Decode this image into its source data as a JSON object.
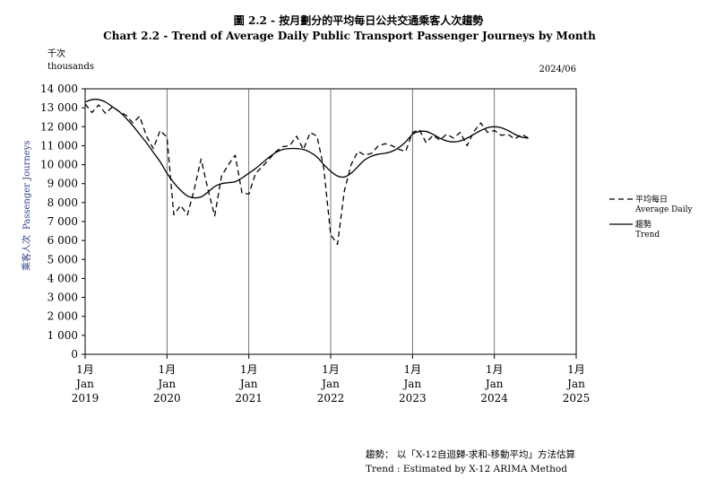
{
  "title_zh": "圖 2.2 -  按月劃分的平均每日公共交通乘客人次趨勢",
  "title_en": "Chart 2.2 -  Trend of Average Daily Public Transport Passenger Journeys by Month",
  "unit_zh": "千次",
  "unit_en": "thousands",
  "period": "2024/06",
  "note_zh": "趨勢：  以「X-12自迴歸-求和-移動平均」方法估算",
  "note_en": "Trend : Estimated by X-12 ARIMA Method",
  "colors": {
    "line": "#000000",
    "axis": "#000000",
    "ylabel": "#2f3f86"
  },
  "chart_data": {
    "type": "line",
    "title": "Trend of Average Daily Public Transport Passenger Journeys by Month",
    "ylabel_zh": "乘客人次",
    "ylabel_en": "Passenger Journeys",
    "ylim": [
      0,
      14000
    ],
    "yticks": [
      0,
      1000,
      2000,
      3000,
      4000,
      5000,
      6000,
      7000,
      8000,
      9000,
      10000,
      11000,
      12000,
      13000,
      14000
    ],
    "ytick_labels": [
      "0",
      "1 000",
      "2 000",
      "3 000",
      "4 000",
      "5 000",
      "6 000",
      "7 000",
      "8 000",
      "9 000",
      "10 000",
      "11 000",
      "12 000",
      "13 000",
      "14 000"
    ],
    "xlim": [
      "2019-01",
      "2025-01"
    ],
    "xticks": [
      {
        "month_zh": "1月",
        "month_en": "Jan",
        "year": "2019"
      },
      {
        "month_zh": "1月",
        "month_en": "Jan",
        "year": "2020"
      },
      {
        "month_zh": "1月",
        "month_en": "Jan",
        "year": "2021"
      },
      {
        "month_zh": "1月",
        "month_en": "Jan",
        "year": "2022"
      },
      {
        "month_zh": "1月",
        "month_en": "Jan",
        "year": "2023"
      },
      {
        "month_zh": "1月",
        "month_en": "Jan",
        "year": "2024"
      },
      {
        "month_zh": "1月",
        "month_en": "Jan",
        "year": "2025"
      }
    ],
    "grid": "vertical lines at each January",
    "legend_position": "right",
    "x": [
      "2019-01",
      "2019-02",
      "2019-03",
      "2019-04",
      "2019-05",
      "2019-06",
      "2019-07",
      "2019-08",
      "2019-09",
      "2019-10",
      "2019-11",
      "2019-12",
      "2020-01",
      "2020-02",
      "2020-03",
      "2020-04",
      "2020-05",
      "2020-06",
      "2020-07",
      "2020-08",
      "2020-09",
      "2020-10",
      "2020-11",
      "2020-12",
      "2021-01",
      "2021-02",
      "2021-03",
      "2021-04",
      "2021-05",
      "2021-06",
      "2021-07",
      "2021-08",
      "2021-09",
      "2021-10",
      "2021-11",
      "2021-12",
      "2022-01",
      "2022-02",
      "2022-03",
      "2022-04",
      "2022-05",
      "2022-06",
      "2022-07",
      "2022-08",
      "2022-09",
      "2022-10",
      "2022-11",
      "2022-12",
      "2023-01",
      "2023-02",
      "2023-03",
      "2023-04",
      "2023-05",
      "2023-06",
      "2023-07",
      "2023-08",
      "2023-09",
      "2023-10",
      "2023-11",
      "2023-12",
      "2024-01",
      "2024-02",
      "2024-03",
      "2024-04",
      "2024-05",
      "2024-06"
    ],
    "series": [
      {
        "name_zh": "平均每日",
        "name_en": "Average Daily",
        "style": "dashed",
        "values": [
          13200,
          12750,
          13150,
          12700,
          13050,
          12800,
          12600,
          12200,
          12550,
          11500,
          10850,
          11800,
          11450,
          7350,
          7850,
          7350,
          8700,
          10300,
          8700,
          7300,
          9400,
          10000,
          10500,
          8500,
          8450,
          9550,
          9900,
          10300,
          10700,
          10950,
          11000,
          11500,
          10800,
          11700,
          11500,
          9800,
          6300,
          5800,
          8600,
          10000,
          10700,
          10500,
          10600,
          11000,
          11100,
          11000,
          10800,
          10700,
          11700,
          11850,
          11150,
          11550,
          11300,
          11600,
          11400,
          11700,
          11000,
          11750,
          12200,
          11700,
          11800,
          11550,
          11600,
          11350,
          11600,
          11400
        ]
      },
      {
        "name_zh": "趨勢",
        "name_en": "Trend",
        "style": "solid",
        "values": [
          13300,
          13430,
          13430,
          13300,
          13050,
          12800,
          12450,
          12050,
          11600,
          11150,
          10650,
          10150,
          9550,
          9050,
          8650,
          8350,
          8250,
          8300,
          8550,
          8850,
          9000,
          9050,
          9100,
          9300,
          9550,
          9800,
          10100,
          10400,
          10650,
          10800,
          10850,
          10850,
          10800,
          10650,
          10400,
          10000,
          9650,
          9400,
          9350,
          9550,
          9900,
          10250,
          10450,
          10550,
          10600,
          10700,
          10900,
          11200,
          11600,
          11750,
          11750,
          11600,
          11400,
          11250,
          11200,
          11250,
          11400,
          11600,
          11800,
          11950,
          12000,
          11950,
          11800,
          11600,
          11450,
          11400
        ]
      }
    ]
  }
}
